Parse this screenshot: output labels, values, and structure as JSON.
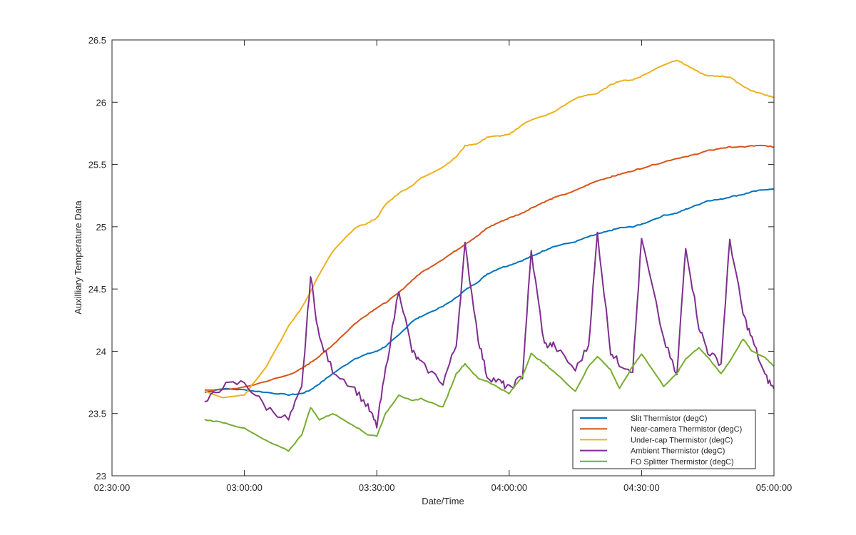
{
  "chart_data": {
    "type": "line",
    "xlabel": "Date/Time",
    "ylabel": "Auxilliary Temperature Data",
    "xlim": [
      "02:30:00",
      "05:00:00"
    ],
    "ylim": [
      23,
      26.5
    ],
    "x_ticks": [
      "02:30:00",
      "03:00:00",
      "03:30:00",
      "04:00:00",
      "04:30:00",
      "05:00:00"
    ],
    "y_ticks": [
      "23",
      "23.5",
      "24",
      "24.5",
      "25",
      "25.5",
      "26",
      "26.5"
    ],
    "grid": false,
    "legend_position": "bottom-right",
    "x": [
      "02:51:00",
      "02:55:00",
      "03:00:00",
      "03:05:00",
      "03:10:00",
      "03:13:00",
      "03:15:00",
      "03:17:00",
      "03:20:00",
      "03:25:00",
      "03:28:00",
      "03:30:00",
      "03:32:00",
      "03:35:00",
      "03:38:00",
      "03:40:00",
      "03:45:00",
      "03:48:00",
      "03:50:00",
      "03:53:00",
      "03:55:00",
      "03:58:00",
      "04:00:00",
      "04:03:00",
      "04:05:00",
      "04:08:00",
      "04:10:00",
      "04:15:00",
      "04:18:00",
      "04:20:00",
      "04:23:00",
      "04:25:00",
      "04:28:00",
      "04:30:00",
      "04:35:00",
      "04:38:00",
      "04:40:00",
      "04:43:00",
      "04:45:00",
      "04:48:00",
      "04:50:00",
      "04:53:00",
      "04:55:00",
      "04:58:00",
      "05:00:00"
    ],
    "series": [
      {
        "name": "Slit Thermistor (degC)",
        "color": "#0072BD",
        "values": [
          23.67,
          23.7,
          23.69,
          23.67,
          23.65,
          23.66,
          23.69,
          23.74,
          23.82,
          23.94,
          23.98,
          24.0,
          24.04,
          24.13,
          24.24,
          24.28,
          24.36,
          24.43,
          24.49,
          24.56,
          24.62,
          24.67,
          24.69,
          24.73,
          24.76,
          24.81,
          24.84,
          24.88,
          24.92,
          24.94,
          24.97,
          24.99,
          25.0,
          25.02,
          25.09,
          25.11,
          25.14,
          25.18,
          25.21,
          25.22,
          25.24,
          25.26,
          25.28,
          25.3,
          25.3
        ]
      },
      {
        "name": "Near-camera Thermistor (degC)",
        "color": "#D95319",
        "values": [
          23.69,
          23.69,
          23.71,
          23.76,
          23.81,
          23.86,
          23.91,
          23.96,
          24.05,
          24.22,
          24.3,
          24.35,
          24.39,
          24.47,
          24.57,
          24.63,
          24.74,
          24.81,
          24.86,
          24.93,
          24.99,
          25.04,
          25.07,
          25.11,
          25.15,
          25.2,
          25.23,
          25.29,
          25.34,
          25.37,
          25.4,
          25.42,
          25.45,
          25.47,
          25.52,
          25.55,
          25.56,
          25.59,
          25.61,
          25.63,
          25.64,
          25.64,
          25.65,
          25.65,
          25.64
        ]
      },
      {
        "name": "Under-cap Thermistor (degC)",
        "color": "#EDB120",
        "values": [
          23.68,
          23.63,
          23.65,
          23.88,
          24.2,
          24.35,
          24.48,
          24.62,
          24.8,
          24.99,
          25.03,
          25.07,
          25.18,
          25.27,
          25.33,
          25.39,
          25.48,
          25.56,
          25.65,
          25.67,
          25.72,
          25.73,
          25.74,
          25.82,
          25.86,
          25.89,
          25.92,
          26.03,
          26.06,
          26.07,
          26.14,
          26.17,
          26.18,
          26.21,
          26.3,
          26.34,
          26.3,
          26.24,
          26.21,
          26.21,
          26.2,
          26.13,
          26.09,
          26.06,
          26.04
        ]
      },
      {
        "name": "Ambient Thermistor (degC)",
        "color": "#7E2F8E",
        "values": [
          23.58,
          23.72,
          23.75,
          23.55,
          23.45,
          23.7,
          24.6,
          24.1,
          23.85,
          23.7,
          23.55,
          23.4,
          23.85,
          24.5,
          24.0,
          23.9,
          23.75,
          24.05,
          24.85,
          24.1,
          23.8,
          23.75,
          23.7,
          23.8,
          24.8,
          24.05,
          24.05,
          23.85,
          24.05,
          24.95,
          24.0,
          23.9,
          23.85,
          24.9,
          24.1,
          23.8,
          24.85,
          24.2,
          24.0,
          23.9,
          24.9,
          24.3,
          24.1,
          23.8,
          23.7
        ]
      },
      {
        "name": "FO Splitter Thermistor (degC)",
        "color": "#77AC30",
        "values": [
          23.45,
          23.43,
          23.38,
          23.28,
          23.2,
          23.33,
          23.55,
          23.45,
          23.5,
          23.4,
          23.33,
          23.32,
          23.5,
          23.65,
          23.6,
          23.62,
          23.55,
          23.82,
          23.9,
          23.78,
          23.76,
          23.7,
          23.66,
          23.8,
          23.98,
          23.9,
          23.84,
          23.68,
          23.88,
          23.96,
          23.85,
          23.7,
          23.88,
          23.98,
          23.72,
          23.82,
          23.94,
          24.03,
          23.95,
          23.82,
          23.92,
          24.1,
          24.0,
          23.95,
          23.88
        ]
      }
    ]
  }
}
